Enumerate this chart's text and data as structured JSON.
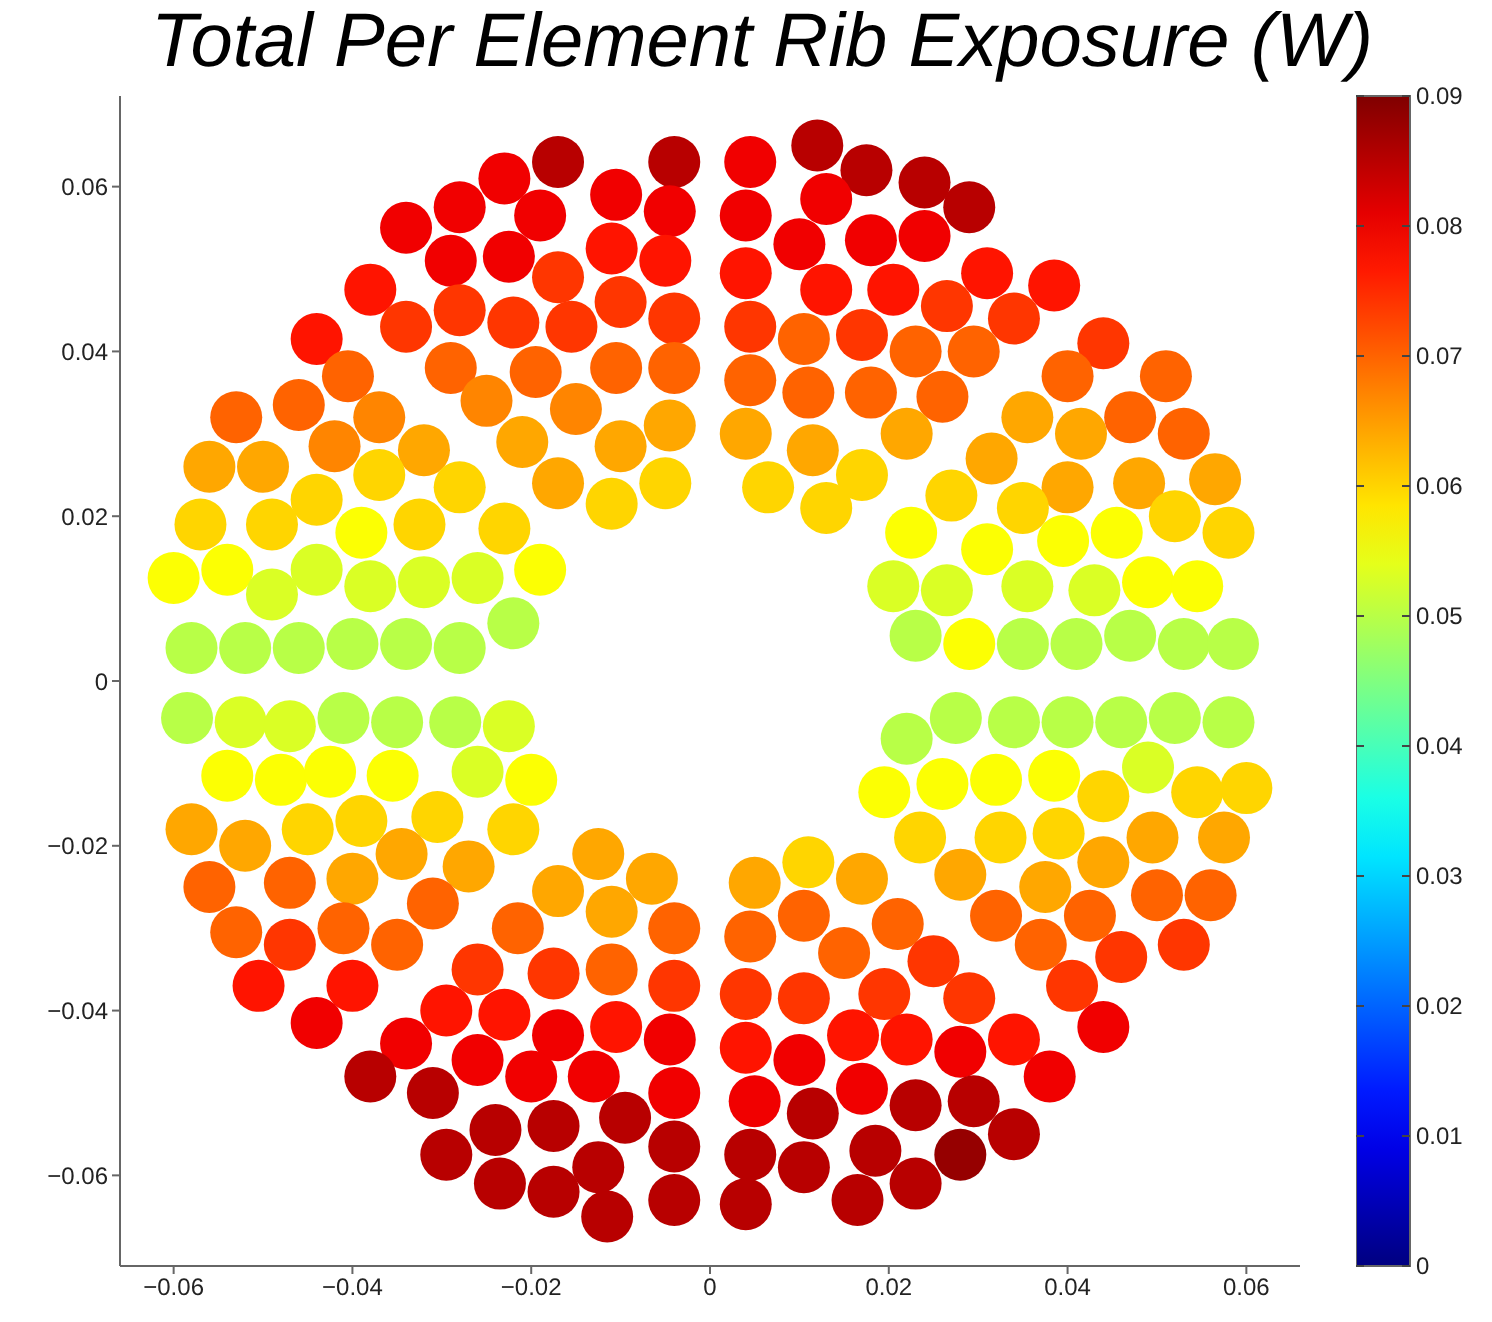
{
  "chart_data": {
    "type": "scatter",
    "title": "Total Per Element Rib Exposure (W)",
    "x": [
      -0.017,
      -0.004,
      -0.023,
      -0.0105,
      -0.0045,
      -0.028,
      -0.019,
      -0.034,
      -0.029,
      -0.0225,
      -0.011,
      -0.005,
      -0.017,
      -0.038,
      -0.034,
      -0.028,
      -0.022,
      -0.0155,
      -0.01,
      -0.004,
      -0.044,
      -0.0405,
      -0.029,
      -0.0195,
      -0.0105,
      -0.004,
      -0.046,
      -0.053,
      -0.037,
      -0.025,
      -0.015,
      -0.042,
      -0.032,
      -0.021,
      -0.01,
      -0.0045,
      -0.056,
      -0.05,
      -0.037,
      -0.017,
      -0.057,
      -0.049,
      -0.044,
      -0.028,
      -0.011,
      -0.005,
      -0.039,
      -0.0325,
      -0.023,
      -0.06,
      -0.054,
      -0.049,
      -0.044,
      -0.038,
      -0.032,
      -0.026,
      -0.019,
      -0.058,
      -0.052,
      -0.046,
      -0.04,
      -0.034,
      -0.028,
      -0.022,
      0.0045,
      0.012,
      0.0175,
      0.024,
      0.029,
      0.004,
      0.013,
      0.01,
      0.018,
      0.024,
      0.004,
      0.013,
      0.0205,
      0.0265,
      0.031,
      0.0385,
      0.034,
      0.0045,
      0.0105,
      0.017,
      0.023,
      0.0295,
      0.044,
      0.0045,
      0.011,
      0.018,
      0.026,
      0.04,
      0.051,
      0.004,
      0.0115,
      0.022,
      0.0355,
      0.0415,
      0.047,
      0.053,
      0.0065,
      0.017,
      0.0315,
      0.04,
      0.048,
      0.0565,
      0.013,
      0.027,
      0.035,
      0.052,
      0.058,
      0.0225,
      0.031,
      0.0395,
      0.0455,
      0.0205,
      0.0265,
      0.0355,
      0.043,
      0.049,
      0.0545,
      0.023,
      0.029,
      0.035,
      0.041,
      0.047,
      0.053,
      0.0585,
      -0.0585,
      -0.0525,
      -0.047,
      -0.041,
      -0.035,
      -0.0285,
      -0.0225,
      -0.054,
      -0.048,
      -0.0425,
      -0.0355,
      -0.026,
      -0.02,
      -0.058,
      -0.052,
      -0.045,
      -0.039,
      -0.0305,
      -0.022,
      -0.0345,
      -0.027,
      -0.056,
      -0.047,
      -0.04,
      -0.031,
      -0.0125,
      -0.0065,
      -0.017,
      -0.011,
      -0.004,
      -0.053,
      -0.047,
      -0.041,
      -0.035,
      -0.0215,
      -0.026,
      -0.0175,
      -0.011,
      -0.004,
      -0.0505,
      -0.04,
      -0.044,
      -0.0295,
      -0.023,
      -0.017,
      -0.0105,
      -0.0045,
      -0.034,
      -0.026,
      -0.038,
      -0.031,
      -0.02,
      -0.013,
      -0.004,
      -0.024,
      -0.0175,
      -0.0095,
      -0.0295,
      -0.0235,
      -0.0175,
      -0.0125,
      -0.004,
      -0.0115,
      -0.004,
      0.022,
      0.0275,
      0.034,
      0.04,
      0.046,
      0.052,
      0.058,
      0.0195,
      0.026,
      0.032,
      0.0385,
      0.044,
      0.049,
      0.0545,
      0.06,
      0.0235,
      0.0325,
      0.039,
      0.044,
      0.0495,
      0.0575,
      0.028,
      0.0375,
      0.05,
      0.056,
      0.032,
      0.0425,
      0.037,
      0.046,
      0.053,
      0.0405,
      0.044,
      0.005,
      0.011,
      0.017,
      0.0045,
      0.0105,
      0.021,
      0.015,
      0.025,
      0.004,
      0.0105,
      0.0195,
      0.029,
      0.004,
      0.016,
      0.022,
      0.028,
      0.034,
      0.038,
      0.01,
      0.005,
      0.0115,
      0.017,
      0.023,
      0.0295,
      0.034,
      0.0045,
      0.0105,
      0.0185,
      0.028,
      0.004,
      0.0165,
      0.023
    ],
    "values": [
      0.063,
      0.063,
      0.061,
      0.059,
      0.057,
      0.0575,
      0.0565,
      0.055,
      0.051,
      0.0515,
      0.0525,
      0.051,
      0.049,
      0.0475,
      0.043,
      0.045,
      0.0435,
      0.043,
      0.046,
      0.044,
      0.0415,
      0.037,
      0.038,
      0.0375,
      0.038,
      0.038,
      0.0335,
      0.032,
      0.032,
      0.034,
      0.033,
      0.0285,
      0.028,
      0.029,
      0.0285,
      0.031,
      0.026,
      0.026,
      0.025,
      0.024,
      0.019,
      0.019,
      0.022,
      0.0235,
      0.0215,
      0.024,
      0.018,
      0.019,
      0.0185,
      0.0125,
      0.0135,
      0.0105,
      0.0135,
      0.0115,
      0.012,
      0.0125,
      0.0135,
      0.004,
      0.004,
      0.004,
      0.0045,
      0.0045,
      0.004,
      0.007,
      0.063,
      0.065,
      0.062,
      0.0605,
      0.0575,
      0.0565,
      0.0585,
      0.053,
      0.0535,
      0.054,
      0.0495,
      0.0475,
      0.0475,
      0.0455,
      0.0495,
      0.048,
      0.044,
      0.043,
      0.0415,
      0.042,
      0.04,
      0.04,
      0.041,
      0.0365,
      0.035,
      0.035,
      0.0345,
      0.037,
      0.037,
      0.03,
      0.028,
      0.03,
      0.032,
      0.03,
      0.032,
      0.03,
      0.0235,
      0.025,
      0.027,
      0.0235,
      0.024,
      0.0245,
      0.021,
      0.0225,
      0.021,
      0.02,
      0.018,
      0.018,
      0.016,
      0.017,
      0.018,
      0.0115,
      0.011,
      0.0115,
      0.011,
      0.012,
      0.0115,
      0.0055,
      0.0045,
      0.0045,
      0.0045,
      0.0055,
      0.0045,
      0.0045,
      -0.0045,
      -0.005,
      -0.0055,
      -0.0045,
      -0.005,
      -0.005,
      -0.0055,
      -0.0115,
      -0.012,
      -0.011,
      -0.0115,
      -0.011,
      -0.012,
      -0.018,
      -0.02,
      -0.018,
      -0.017,
      -0.0165,
      -0.018,
      -0.021,
      -0.0225,
      -0.025,
      -0.0245,
      -0.024,
      -0.027,
      -0.021,
      -0.024,
      -0.0255,
      -0.028,
      -0.03,
      -0.0305,
      -0.032,
      -0.03,
      -0.032,
      -0.03,
      -0.035,
      -0.0355,
      -0.035,
      -0.037,
      -0.037,
      -0.037,
      -0.0415,
      -0.04,
      -0.0405,
      -0.043,
      -0.042,
      -0.0435,
      -0.044,
      -0.046,
      -0.048,
      -0.05,
      -0.048,
      -0.048,
      -0.05,
      -0.0545,
      -0.054,
      -0.053,
      -0.0575,
      -0.061,
      -0.062,
      -0.059,
      -0.0565,
      -0.065,
      -0.063,
      -0.007,
      -0.0045,
      -0.005,
      -0.005,
      -0.005,
      -0.0045,
      -0.005,
      -0.0135,
      -0.0125,
      -0.012,
      -0.0115,
      -0.014,
      -0.0105,
      -0.0135,
      -0.013,
      -0.019,
      -0.019,
      -0.0185,
      -0.022,
      -0.019,
      -0.019,
      -0.0235,
      -0.025,
      -0.026,
      -0.026,
      -0.0285,
      -0.0285,
      -0.032,
      -0.0335,
      -0.032,
      -0.037,
      -0.042,
      -0.0245,
      -0.022,
      -0.024,
      -0.031,
      -0.0285,
      -0.0295,
      -0.033,
      -0.034,
      -0.038,
      -0.0385,
      -0.038,
      -0.0385,
      -0.0445,
      -0.043,
      -0.0435,
      -0.045,
      -0.0435,
      -0.048,
      -0.046,
      -0.051,
      -0.0525,
      -0.0495,
      -0.0515,
      -0.051,
      -0.055,
      -0.0575,
      -0.059,
      -0.057,
      -0.0575,
      -0.0635,
      -0.063,
      -0.061
    ],
    "cvalues": [
      0.085,
      0.085,
      0.08,
      0.08,
      0.08,
      0.08,
      0.08,
      0.08,
      0.08,
      0.08,
      0.077,
      0.077,
      0.074,
      0.077,
      0.074,
      0.074,
      0.074,
      0.074,
      0.074,
      0.074,
      0.077,
      0.07,
      0.07,
      0.07,
      0.07,
      0.07,
      0.07,
      0.07,
      0.067,
      0.067,
      0.067,
      0.067,
      0.064,
      0.064,
      0.064,
      0.064,
      0.064,
      0.064,
      0.06,
      0.064,
      0.06,
      0.06,
      0.06,
      0.06,
      0.06,
      0.06,
      0.056,
      0.06,
      0.06,
      0.056,
      0.056,
      0.053,
      0.053,
      0.053,
      0.053,
      0.053,
      0.056,
      0.05,
      0.05,
      0.05,
      0.05,
      0.05,
      0.05,
      0.05,
      0.08,
      0.085,
      0.085,
      0.085,
      0.085,
      0.08,
      0.08,
      0.08,
      0.08,
      0.08,
      0.077,
      0.077,
      0.077,
      0.074,
      0.077,
      0.077,
      0.074,
      0.074,
      0.07,
      0.074,
      0.07,
      0.07,
      0.074,
      0.07,
      0.07,
      0.07,
      0.07,
      0.07,
      0.07,
      0.064,
      0.064,
      0.064,
      0.064,
      0.064,
      0.07,
      0.07,
      0.06,
      0.06,
      0.064,
      0.064,
      0.064,
      0.064,
      0.06,
      0.06,
      0.06,
      0.06,
      0.06,
      0.056,
      0.056,
      0.056,
      0.056,
      0.053,
      0.053,
      0.053,
      0.053,
      0.056,
      0.056,
      0.05,
      0.056,
      0.05,
      0.05,
      0.05,
      0.05,
      0.05,
      0.05,
      0.053,
      0.053,
      0.05,
      0.05,
      0.05,
      0.053,
      0.056,
      0.056,
      0.056,
      0.056,
      0.053,
      0.056,
      0.064,
      0.064,
      0.06,
      0.06,
      0.06,
      0.06,
      0.064,
      0.064,
      0.07,
      0.07,
      0.064,
      0.07,
      0.064,
      0.064,
      0.064,
      0.064,
      0.07,
      0.07,
      0.074,
      0.07,
      0.07,
      0.07,
      0.074,
      0.074,
      0.07,
      0.074,
      0.077,
      0.077,
      0.08,
      0.077,
      0.077,
      0.08,
      0.077,
      0.08,
      0.08,
      0.08,
      0.085,
      0.085,
      0.08,
      0.08,
      0.08,
      0.085,
      0.085,
      0.085,
      0.085,
      0.085,
      0.085,
      0.085,
      0.085,
      0.085,
      0.085,
      0.05,
      0.05,
      0.05,
      0.05,
      0.05,
      0.05,
      0.05,
      0.056,
      0.056,
      0.056,
      0.056,
      0.06,
      0.053,
      0.06,
      0.06,
      0.06,
      0.06,
      0.06,
      0.064,
      0.064,
      0.064,
      0.064,
      0.064,
      0.07,
      0.07,
      0.07,
      0.07,
      0.07,
      0.074,
      0.074,
      0.074,
      0.08,
      0.064,
      0.06,
      0.064,
      0.07,
      0.07,
      0.07,
      0.07,
      0.074,
      0.074,
      0.074,
      0.074,
      0.074,
      0.077,
      0.077,
      0.077,
      0.08,
      0.077,
      0.08,
      0.08,
      0.08,
      0.085,
      0.08,
      0.085,
      0.085,
      0.085,
      0.085,
      0.085,
      0.085,
      0.088,
      0.085,
      0.085,
      0.085
    ],
    "xlim": [
      -0.066,
      0.066
    ],
    "ylim": [
      -0.071,
      0.071
    ],
    "xticks": [
      -0.06,
      -0.04,
      -0.02,
      0,
      0.02,
      0.04,
      0.06
    ],
    "yticks": [
      -0.06,
      -0.04,
      -0.02,
      0,
      0.02,
      0.04,
      0.06
    ],
    "clim": [
      0,
      0.09
    ],
    "cticks": [
      0,
      0.01,
      0.02,
      0.03,
      0.04,
      0.05,
      0.06,
      0.07,
      0.08,
      0.09
    ],
    "marker": "circle"
  }
}
